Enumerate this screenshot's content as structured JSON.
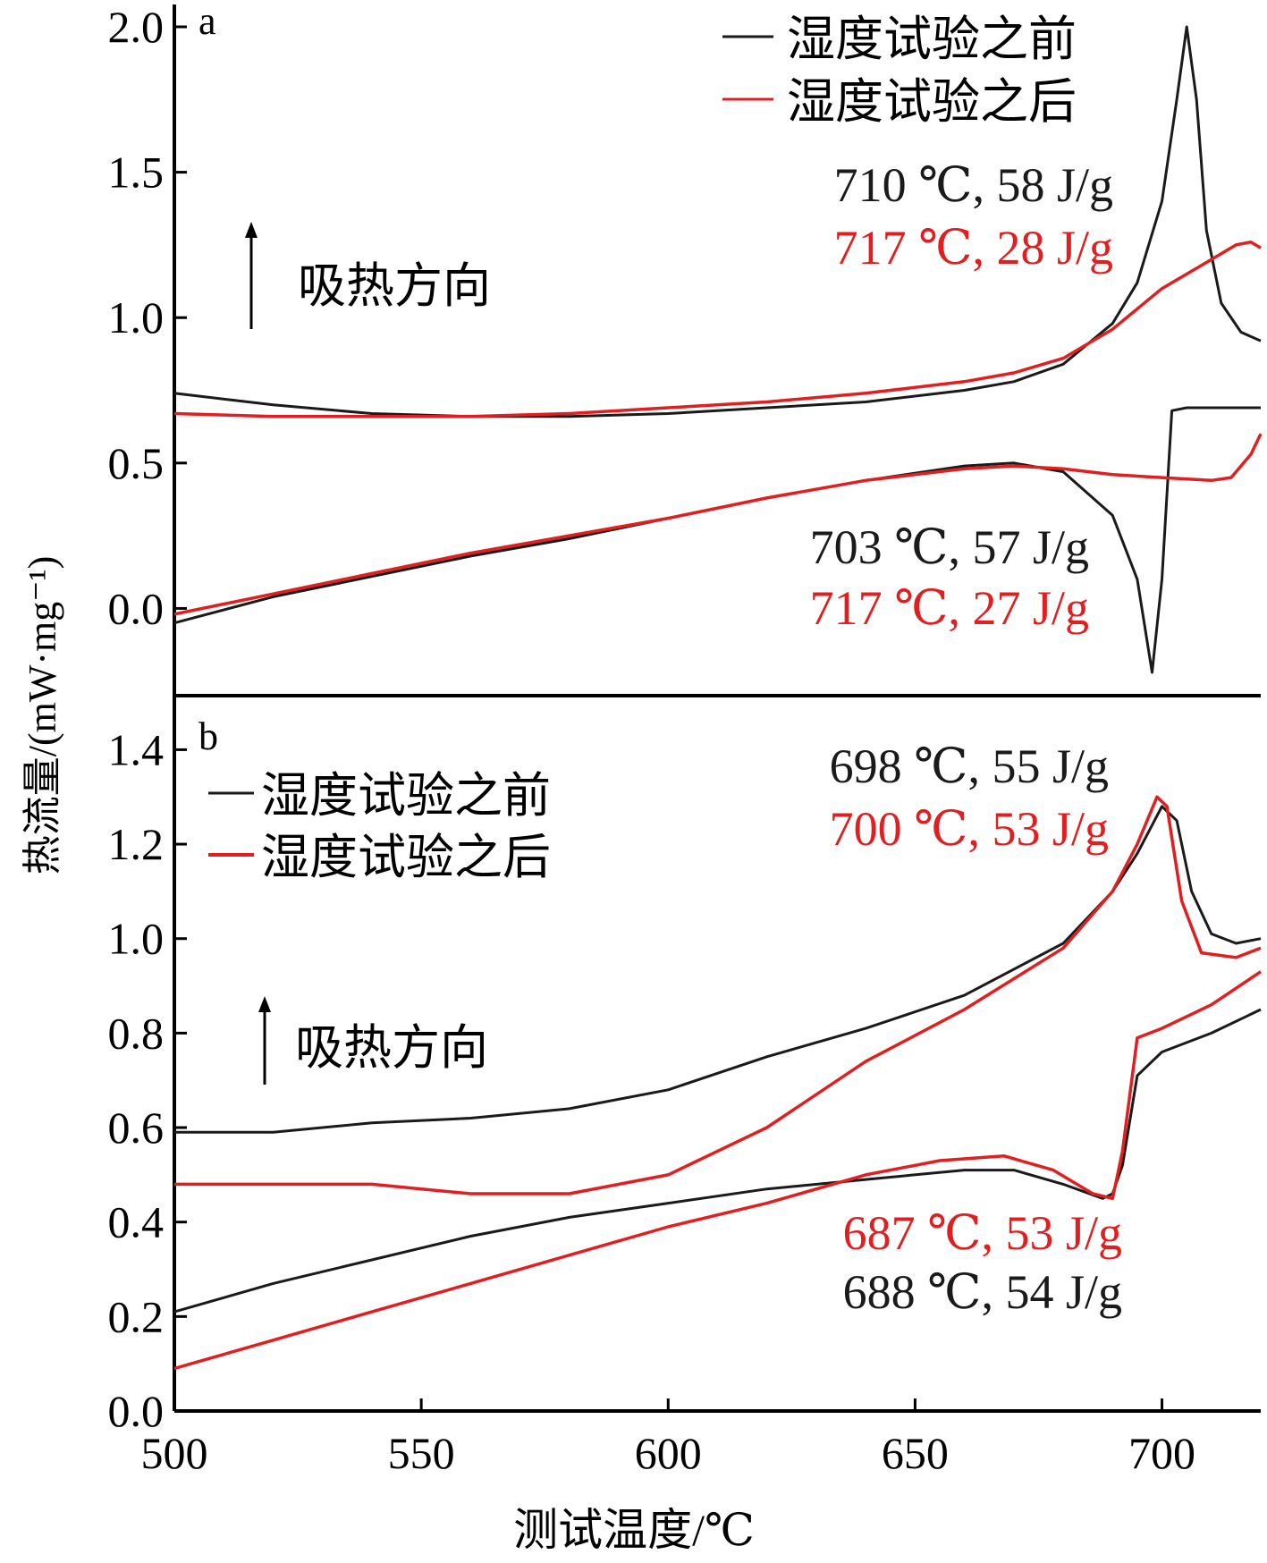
{
  "colors": {
    "before": "#1a1a1a",
    "after": "#e02020",
    "axis": "#000000"
  },
  "xaxis": {
    "label": "测试温度/℃",
    "ticks": [
      "500",
      "550",
      "600",
      "650",
      "700"
    ],
    "tick_values": [
      500,
      550,
      600,
      650,
      700
    ]
  },
  "ylabel": "热流量/(mW·mg⁻¹)",
  "chart_data": [
    {
      "type": "line",
      "panel": "a",
      "xlim": [
        500,
        720
      ],
      "ylim": [
        -0.3,
        2.0
      ],
      "ytick_labels": [
        "0.0",
        "0.5",
        "1.0",
        "1.5",
        "2.0"
      ],
      "ytick_values": [
        0.0,
        0.5,
        1.0,
        1.5,
        2.0
      ],
      "legend": [
        {
          "name": "湿度试验之前",
          "color": "#1a1a1a"
        },
        {
          "name": "湿度试验之后",
          "color": "#e02020"
        }
      ],
      "arrow_label": "吸热方向",
      "annotations": [
        {
          "text": "710 ℃, 58 J/g",
          "color": "#1a1a1a"
        },
        {
          "text": "717 ℃, 28 J/g",
          "color": "#e02020"
        },
        {
          "text": "703 ℃, 57 J/g",
          "color": "#1a1a1a"
        },
        {
          "text": "717 ℃, 27 J/g",
          "color": "#e02020"
        }
      ],
      "series": [
        {
          "name": "湿度试验之前",
          "segment": "heating",
          "color": "#1a1a1a",
          "x": [
            500,
            520,
            540,
            560,
            580,
            600,
            620,
            640,
            660,
            670,
            680,
            690,
            695,
            700,
            703,
            705,
            707,
            709,
            712,
            716,
            720
          ],
          "y": [
            0.74,
            0.7,
            0.67,
            0.66,
            0.66,
            0.67,
            0.69,
            0.71,
            0.75,
            0.78,
            0.84,
            0.98,
            1.12,
            1.4,
            1.75,
            2.0,
            1.75,
            1.3,
            1.05,
            0.95,
            0.92
          ]
        },
        {
          "name": "湿度试验之后",
          "segment": "heating",
          "color": "#e02020",
          "x": [
            500,
            520,
            540,
            560,
            580,
            600,
            620,
            640,
            660,
            670,
            680,
            690,
            700,
            710,
            715,
            718,
            720
          ],
          "y": [
            0.67,
            0.66,
            0.66,
            0.66,
            0.67,
            0.69,
            0.71,
            0.74,
            0.78,
            0.81,
            0.86,
            0.96,
            1.1,
            1.2,
            1.25,
            1.26,
            1.24
          ]
        },
        {
          "name": "湿度试验之前",
          "segment": "cooling",
          "color": "#1a1a1a",
          "x": [
            500,
            520,
            540,
            560,
            580,
            600,
            620,
            640,
            660,
            670,
            680,
            690,
            695,
            698,
            700,
            702,
            705,
            710,
            720
          ],
          "y": [
            -0.05,
            0.04,
            0.11,
            0.18,
            0.24,
            0.31,
            0.38,
            0.44,
            0.49,
            0.5,
            0.47,
            0.32,
            0.1,
            -0.22,
            0.1,
            0.68,
            0.69,
            0.69,
            0.69
          ]
        },
        {
          "name": "湿度试验之后",
          "segment": "cooling",
          "color": "#e02020",
          "x": [
            500,
            520,
            540,
            560,
            580,
            600,
            620,
            640,
            660,
            670,
            680,
            690,
            700,
            710,
            714,
            718,
            720
          ],
          "y": [
            -0.02,
            0.05,
            0.12,
            0.19,
            0.25,
            0.31,
            0.38,
            0.44,
            0.48,
            0.49,
            0.48,
            0.46,
            0.45,
            0.44,
            0.45,
            0.53,
            0.6
          ]
        }
      ]
    },
    {
      "type": "line",
      "panel": "b",
      "xlim": [
        500,
        720
      ],
      "ylim": [
        0.0,
        1.45
      ],
      "ytick_labels": [
        "0.0",
        "0.2",
        "0.4",
        "0.6",
        "0.8",
        "1.0",
        "1.2",
        "1.4"
      ],
      "ytick_values": [
        0.0,
        0.2,
        0.4,
        0.6,
        0.8,
        1.0,
        1.2,
        1.4
      ],
      "legend": [
        {
          "name": "湿度试验之前",
          "color": "#1a1a1a"
        },
        {
          "name": "湿度试验之后",
          "color": "#e02020"
        }
      ],
      "arrow_label": "吸热方向",
      "annotations": [
        {
          "text": "698 ℃, 55 J/g",
          "color": "#1a1a1a"
        },
        {
          "text": "700 ℃, 53 J/g",
          "color": "#e02020"
        },
        {
          "text": "687 ℃, 53 J/g",
          "color": "#e02020"
        },
        {
          "text": "688 ℃, 54 J/g",
          "color": "#1a1a1a"
        }
      ],
      "series": [
        {
          "name": "湿度试验之前",
          "segment": "heating",
          "color": "#1a1a1a",
          "x": [
            500,
            520,
            540,
            560,
            580,
            600,
            620,
            640,
            660,
            680,
            690,
            695,
            700,
            703,
            706,
            710,
            715,
            720
          ],
          "y": [
            0.59,
            0.59,
            0.61,
            0.62,
            0.64,
            0.68,
            0.75,
            0.81,
            0.88,
            0.99,
            1.1,
            1.18,
            1.28,
            1.25,
            1.1,
            1.01,
            0.99,
            1.0
          ]
        },
        {
          "name": "湿度试验之后",
          "segment": "heating",
          "color": "#e02020",
          "x": [
            500,
            520,
            540,
            560,
            580,
            600,
            620,
            640,
            660,
            680,
            690,
            695,
            699,
            701,
            704,
            708,
            715,
            720
          ],
          "y": [
            0.48,
            0.48,
            0.48,
            0.46,
            0.46,
            0.5,
            0.6,
            0.74,
            0.85,
            0.98,
            1.1,
            1.2,
            1.3,
            1.28,
            1.08,
            0.97,
            0.96,
            0.98
          ]
        },
        {
          "name": "湿度试验之前",
          "segment": "cooling",
          "color": "#1a1a1a",
          "x": [
            500,
            520,
            540,
            560,
            580,
            600,
            620,
            640,
            660,
            670,
            680,
            688,
            690,
            692,
            695,
            700,
            710,
            720
          ],
          "y": [
            0.21,
            0.27,
            0.32,
            0.37,
            0.41,
            0.44,
            0.47,
            0.49,
            0.51,
            0.51,
            0.48,
            0.45,
            0.46,
            0.52,
            0.71,
            0.76,
            0.8,
            0.85
          ]
        },
        {
          "name": "湿度试验之后",
          "segment": "cooling",
          "color": "#e02020",
          "x": [
            500,
            520,
            540,
            560,
            580,
            600,
            620,
            640,
            655,
            668,
            678,
            686,
            690,
            692,
            695,
            700,
            710,
            720
          ],
          "y": [
            0.09,
            0.15,
            0.21,
            0.27,
            0.33,
            0.39,
            0.44,
            0.5,
            0.53,
            0.54,
            0.51,
            0.46,
            0.45,
            0.55,
            0.79,
            0.81,
            0.86,
            0.93
          ]
        }
      ]
    }
  ]
}
